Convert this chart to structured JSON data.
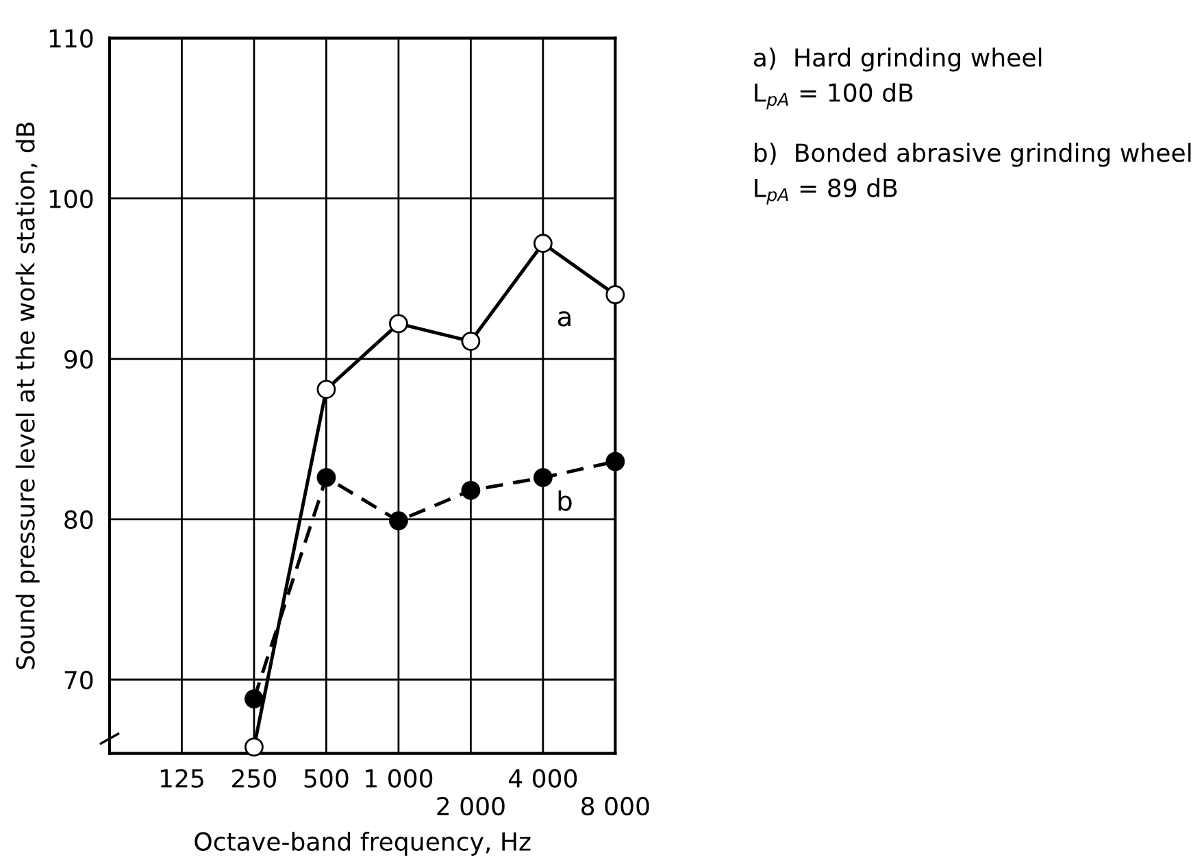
{
  "chart_data": {
    "type": "line",
    "xlabel": "Octave-band frequency, Hz",
    "ylabel": "Sound pressure level at the work station, dB",
    "categories": [
      null,
      "125",
      "250",
      "500",
      "1 000",
      "2 000",
      "4 000",
      "8 000"
    ],
    "series": [
      {
        "name": "a",
        "color": "#000000",
        "marker": "circle",
        "line_style": "solid",
        "values": [
          null,
          null,
          65.8,
          88.1,
          92.2,
          91.1,
          97.2,
          94.0
        ]
      },
      {
        "name": "b",
        "color": "#000000",
        "marker": "circle",
        "line_style": "dashed",
        "values": [
          null,
          null,
          68.8,
          82.6,
          79.9,
          81.8,
          82.6,
          83.6
        ]
      }
    ],
    "ylim": [
      65.4,
      110
    ],
    "yticks": [
      70,
      80,
      90,
      100,
      110
    ],
    "grid": true,
    "legend": false,
    "annotations": [
      "a)  Hard grinding wheel\nL$_{pA}$ = 100 dB",
      "b)  Bonded abrasive grinding wheel\nL$_{pA}$ = 89 dB"
    ]
  }
}
